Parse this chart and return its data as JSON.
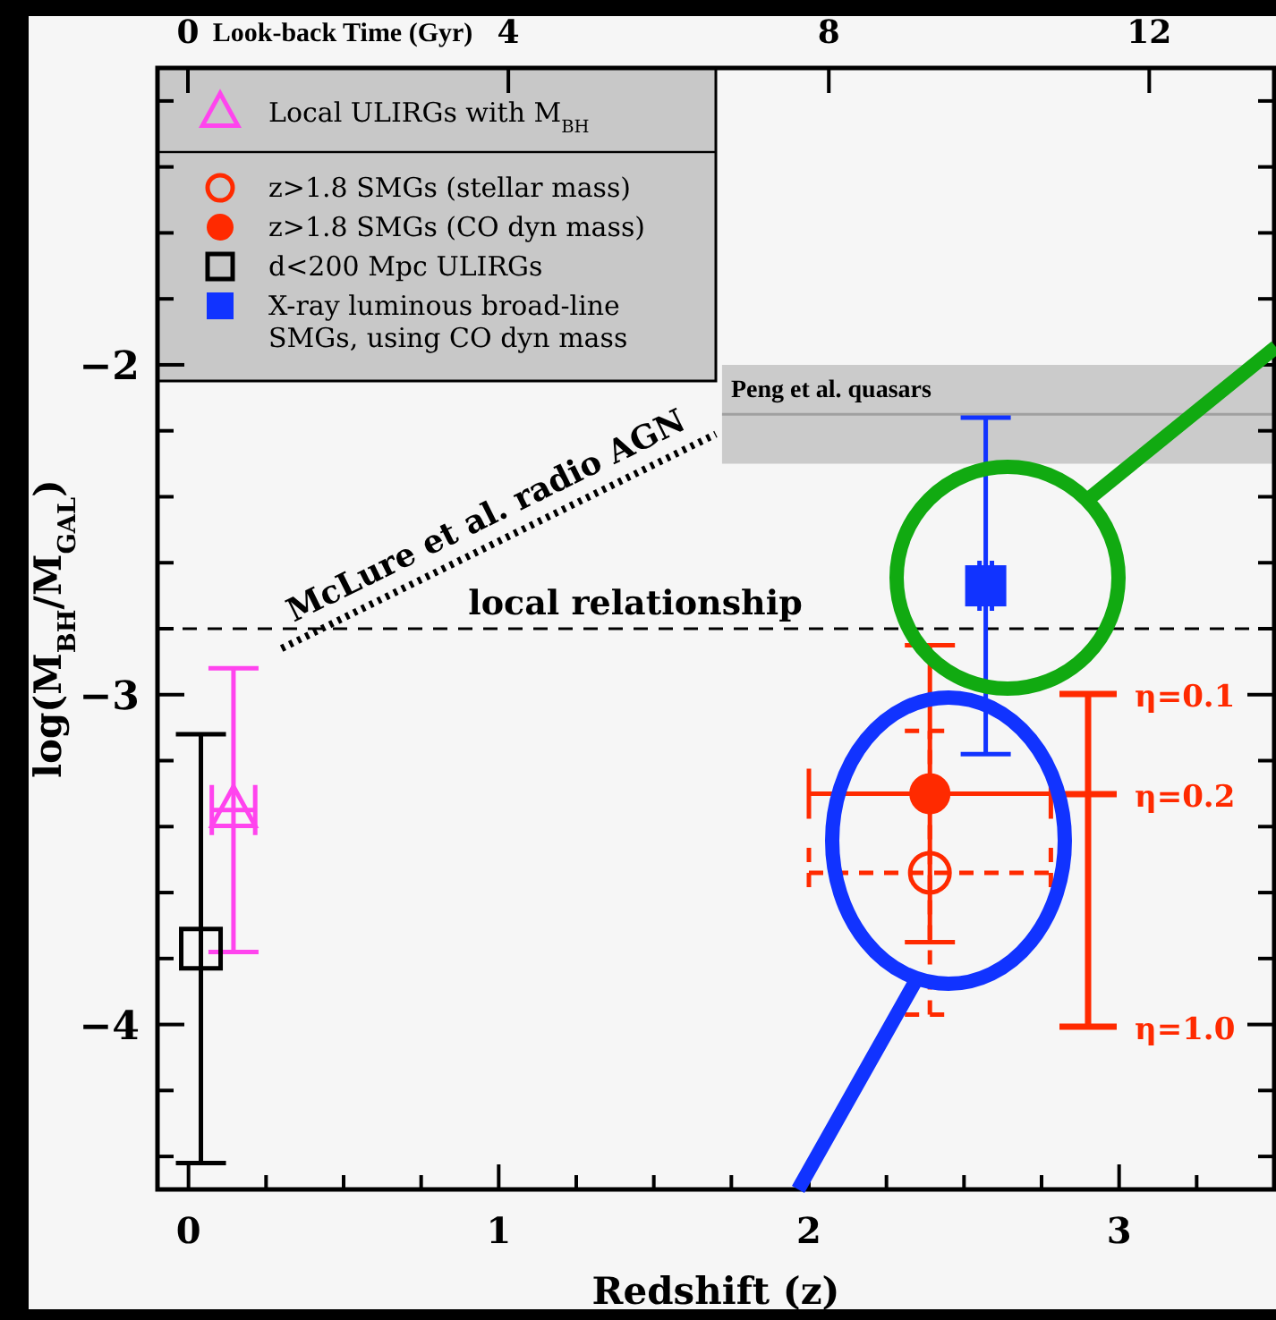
{
  "chart_data": {
    "type": "scatter",
    "xlabel": "Redshift (z)",
    "ylabel": "log(M$_{BH}$/M$_{GAL}$)",
    "x2label": "Look-back Time (Gyr)",
    "xlim": [
      -0.1,
      3.5
    ],
    "ylim": [
      -4.5,
      -1.1
    ],
    "x2lim": [
      -0.38,
      13.56
    ],
    "xticks": [
      0,
      {
        "value": 0.25,
        "label": null
      },
      {
        "value": 0.5,
        "label": null
      },
      {
        "value": 0.75,
        "label": null
      },
      1,
      {
        "value": 1.25,
        "label": null
      },
      {
        "value": 1.5,
        "label": null
      },
      {
        "value": 1.75,
        "label": null
      },
      2,
      {
        "value": 2.25,
        "label": null
      },
      {
        "value": 2.5,
        "label": null
      },
      {
        "value": 2.75,
        "label": null
      },
      3,
      {
        "value": 3.25,
        "label": null
      }
    ],
    "x2ticks": [
      0,
      4,
      8,
      12
    ],
    "yticks": [
      {
        "value": -4.4,
        "label": null
      },
      {
        "value": -4.2,
        "label": null
      },
      -4,
      {
        "value": -3.8,
        "label": null
      },
      {
        "value": -3.6,
        "label": null
      },
      {
        "value": -3.4,
        "label": null
      },
      {
        "value": -3.2,
        "label": null
      },
      -3,
      {
        "value": -2.8,
        "label": null
      },
      {
        "value": -2.6,
        "label": null
      },
      {
        "value": -2.4,
        "label": null
      },
      {
        "value": -2.2,
        "label": null
      },
      -2,
      {
        "value": -1.8,
        "label": null
      },
      {
        "value": -1.6,
        "label": null
      },
      {
        "value": -1.4,
        "label": null
      },
      {
        "value": -1.2,
        "label": null
      }
    ],
    "legend": "top left",
    "series": [
      {
        "name": "Local ULIRGs with M$_{BH}$",
        "marker": "triangle-open",
        "color": "#ff44ee",
        "x": [
          0.145
        ],
        "values": [
          -3.35
        ],
        "errors": [
          0.43
        ],
        "xerrors": [
          0.07
        ]
      },
      {
        "name": "z>1.8 SMGs (stellar mass)",
        "marker": "circle-open",
        "line_style": "dashed",
        "color": "#ff2a00",
        "x": [
          2.39
        ],
        "values": [
          -3.54
        ],
        "errors": [
          0.43
        ],
        "xerrors": [
          0.39
        ]
      },
      {
        "name": "z>1.8 SMGs (CO dyn mass)",
        "marker": "circle",
        "color": "#ff2a00",
        "x": [
          2.39
        ],
        "values": [
          -3.3
        ],
        "errors": [
          0.45
        ],
        "xerrors": [
          0.39
        ]
      },
      {
        "name": "d<200 Mpc ULIRGs",
        "marker": "square-open",
        "color": "#000000",
        "x": [
          0.04
        ],
        "values": [
          -3.77
        ],
        "errors": [
          0.65
        ]
      },
      {
        "name": "X-ray luminous broad-line SMGs, using CO dyn mass",
        "marker": "square",
        "color": "#1133ff",
        "x": [
          2.57
        ],
        "values": [
          -2.67
        ],
        "errors": [
          0.51
        ],
        "xerrors": [
          0.02
        ]
      },
      {
        "name": "McLure et al. radio AGN",
        "type": "line",
        "line_style": "dotted",
        "color": "#000000",
        "x": [
          0.3,
          1.7
        ],
        "values": [
          -2.86,
          -2.21
        ]
      },
      {
        "name": "Peng et al. quasars",
        "type": "line",
        "color": "#a0a0a0",
        "x": [
          1.72,
          3.5
        ],
        "values": [
          -2.15,
          -2.15
        ],
        "lower": [
          -2.3,
          -2.3
        ],
        "upper": [
          -2.0,
          -2.0
        ]
      }
    ],
    "ref_lines": [
      {
        "axis": "y",
        "value": -2.8,
        "label": "local relationship",
        "line_style": "dashed",
        "color": "#000000"
      }
    ],
    "annotations": [
      "η=0.1",
      "η=0.2",
      "η=1.0"
    ]
  }
}
